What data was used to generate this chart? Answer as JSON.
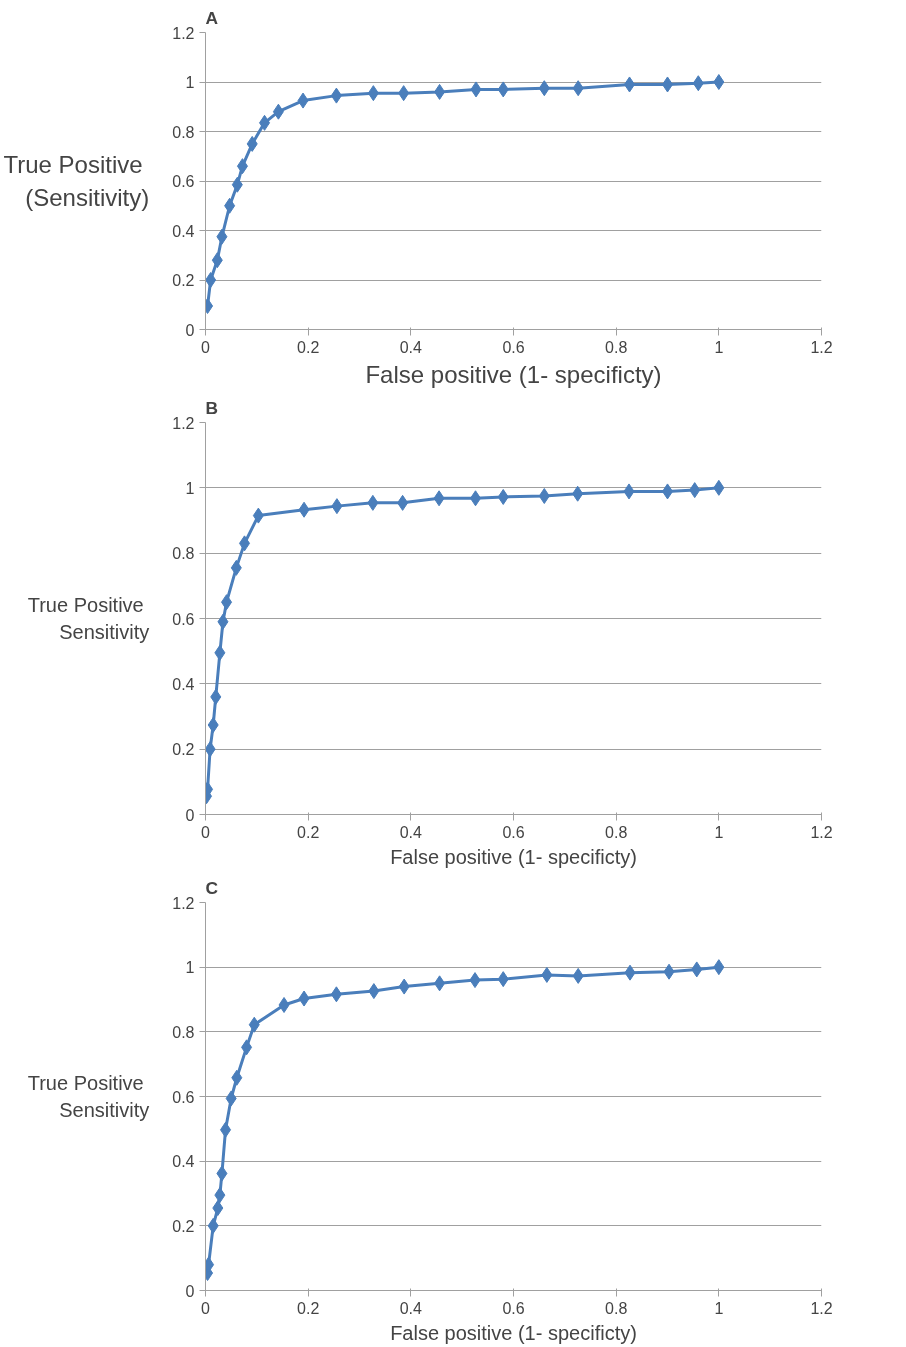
{
  "chart_data": [
    {
      "type": "line",
      "title": "A",
      "xlabel": "False positive (1- specificty)",
      "ylabel": "True  Positive\n(Sensitivity)",
      "marker": "diamond",
      "line_style": "solid",
      "grid": "y",
      "xlim": [
        0,
        1.2
      ],
      "xticks": [
        0,
        0.2,
        0.4,
        0.6,
        0.8,
        1,
        1.2
      ],
      "ylim": [
        0,
        1.2
      ],
      "yticks": [
        0,
        0.2,
        0.4,
        0.6,
        0.8,
        1,
        1.2
      ],
      "series": [
        {
          "color": "#4a7ebb",
          "x": [
            0.004,
            0.01,
            0.023,
            0.032,
            0.047,
            0.062,
            0.072,
            0.091,
            0.115,
            0.142,
            0.19,
            0.255,
            0.327,
            0.386,
            0.456,
            0.527,
            0.58,
            0.66,
            0.726,
            0.826,
            0.9,
            0.96,
            1
          ],
          "values": [
            0.095,
            0.2,
            0.28,
            0.375,
            0.5,
            0.585,
            0.66,
            0.75,
            0.835,
            0.88,
            0.925,
            0.945,
            0.955,
            0.955,
            0.96,
            0.97,
            0.97,
            0.975,
            0.975,
            0.99,
            0.99,
            0.995,
            1
          ]
        }
      ]
    },
    {
      "type": "line",
      "title": "B",
      "xlabel": "False positive (1- specificty)",
      "ylabel": "True  Positive\nSensitivity",
      "marker": "diamond",
      "line_style": "solid",
      "grid": "y",
      "xlim": [
        0,
        1.2
      ],
      "xticks": [
        0,
        0.2,
        0.4,
        0.6,
        0.8,
        1,
        1.2
      ],
      "ylim": [
        0,
        1.2
      ],
      "yticks": [
        0,
        0.2,
        0.4,
        0.6,
        0.8,
        1,
        1.2
      ],
      "series": [
        {
          "color": "#4a7ebb",
          "x": [
            0.002,
            0.004,
            0.009,
            0.015,
            0.02,
            0.028,
            0.034,
            0.041,
            0.06,
            0.076,
            0.103,
            0.192,
            0.256,
            0.326,
            0.384,
            0.455,
            0.526,
            0.58,
            0.66,
            0.725,
            0.825,
            0.9,
            0.953,
            1
          ],
          "values": [
            0.056,
            0.077,
            0.2,
            0.274,
            0.36,
            0.495,
            0.59,
            0.65,
            0.755,
            0.83,
            0.915,
            0.933,
            0.944,
            0.954,
            0.954,
            0.968,
            0.968,
            0.972,
            0.975,
            0.982,
            0.989,
            0.989,
            0.993,
            1
          ]
        }
      ]
    },
    {
      "type": "line",
      "title": "C",
      "xlabel": "False positive (1- specificty)",
      "ylabel": "True  Positive\nSensitivity",
      "marker": "diamond",
      "line_style": "solid",
      "grid": "y",
      "xlim": [
        0,
        1.2
      ],
      "xticks": [
        0,
        0.2,
        0.4,
        0.6,
        0.8,
        1,
        1.2
      ],
      "ylim": [
        0,
        1.2
      ],
      "yticks": [
        0,
        0.2,
        0.4,
        0.6,
        0.8,
        1,
        1.2
      ],
      "series": [
        {
          "color": "#4a7ebb",
          "x": [
            0.004,
            0.006,
            0.015,
            0.024,
            0.028,
            0.032,
            0.039,
            0.05,
            0.061,
            0.08,
            0.095,
            0.153,
            0.192,
            0.255,
            0.328,
            0.387,
            0.456,
            0.525,
            0.58,
            0.665,
            0.726,
            0.827,
            0.903,
            0.957,
            1
          ],
          "values": [
            0.054,
            0.08,
            0.2,
            0.255,
            0.295,
            0.362,
            0.497,
            0.594,
            0.658,
            0.752,
            0.822,
            0.883,
            0.903,
            0.916,
            0.926,
            0.94,
            0.95,
            0.96,
            0.963,
            0.976,
            0.973,
            0.983,
            0.986,
            0.993,
            1
          ]
        }
      ]
    }
  ]
}
